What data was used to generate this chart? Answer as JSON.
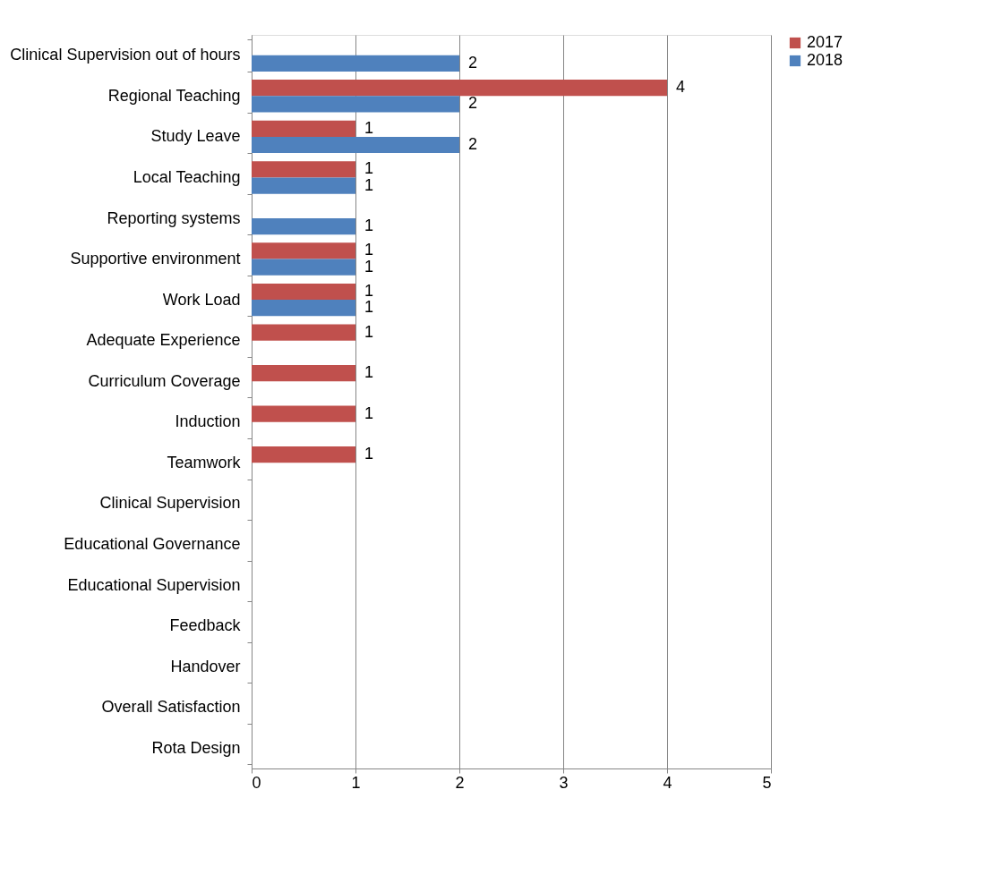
{
  "chart_data": {
    "type": "bar",
    "orientation": "horizontal",
    "categories": [
      "Clinical Supervision out of hours",
      "Regional Teaching",
      "Study Leave",
      "Local Teaching",
      "Reporting systems",
      "Supportive environment",
      "Work Load",
      "Adequate Experience",
      "Curriculum Coverage",
      "Induction",
      "Teamwork",
      "Clinical Supervision",
      "Educational Governance",
      "Educational Supervision",
      "Feedback",
      "Handover",
      "Overall Satisfaction",
      "Rota Design"
    ],
    "series": [
      {
        "name": "2017",
        "color": "#c0504d",
        "values": [
          null,
          4,
          1,
          1,
          null,
          1,
          1,
          1,
          1,
          1,
          1,
          null,
          null,
          null,
          null,
          null,
          null,
          null
        ]
      },
      {
        "name": "2018",
        "color": "#4f81bd",
        "values": [
          2,
          2,
          2,
          1,
          1,
          1,
          1,
          null,
          null,
          null,
          null,
          null,
          null,
          null,
          null,
          null,
          null,
          null
        ]
      }
    ],
    "xlim": [
      0,
      5
    ],
    "xticks": [
      0,
      1,
      2,
      3,
      4,
      5
    ],
    "grid": "x",
    "legend": "right",
    "data_labels": true
  }
}
